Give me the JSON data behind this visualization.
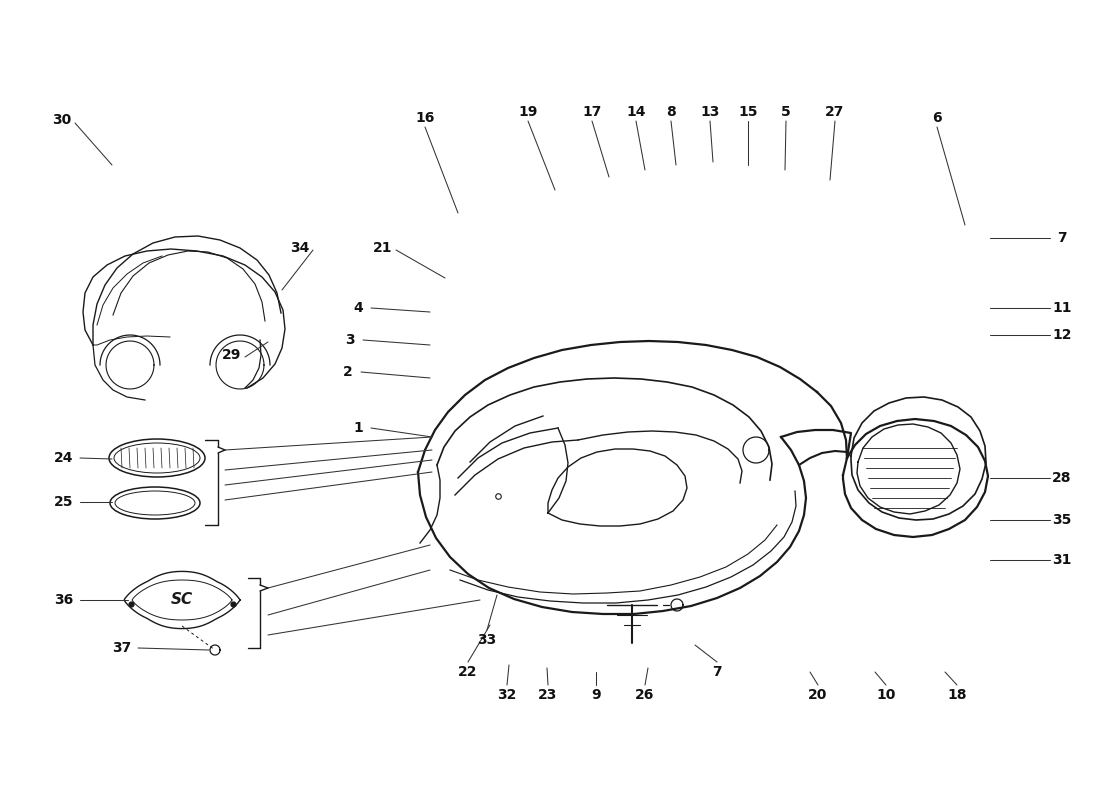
{
  "bg_color": "#ffffff",
  "line_color": "#1a1a1a",
  "text_color": "#111111",
  "figsize": [
    11.0,
    8.0
  ],
  "dpi": 100
}
